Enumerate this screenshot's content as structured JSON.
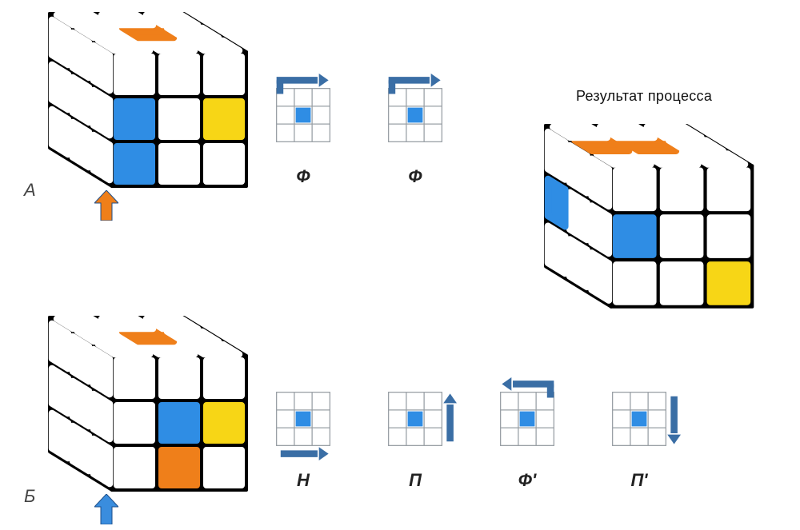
{
  "colors": {
    "orange": "#ef7f1a",
    "blue": "#2f8de4",
    "yellow": "#f7d616",
    "white": "#ffffff",
    "edge": "#000000",
    "grid": "#9aa0a6",
    "arrow": "#3a6ea5",
    "arrowBlue": "#3a8dde",
    "arrowOrange": "#ef7f1a"
  },
  "labels": {
    "rowA": "А",
    "rowB": "Б",
    "result": "Результат процесса"
  },
  "cubes": {
    "A": {
      "top": [
        "white",
        "white",
        "white",
        "white",
        "orange",
        "white",
        "white",
        "white",
        "white"
      ],
      "left": [
        "white",
        "white",
        "white",
        "white",
        "white",
        "white",
        "white",
        "white",
        "white"
      ],
      "front": [
        "white",
        "white",
        "white",
        "blue",
        "white",
        "yellow",
        "blue",
        "white",
        "white"
      ]
    },
    "B": {
      "top": [
        "white",
        "white",
        "white",
        "white",
        "orange",
        "white",
        "white",
        "white",
        "white"
      ],
      "left": [
        "white",
        "white",
        "white",
        "white",
        "white",
        "white",
        "white",
        "white",
        "white"
      ],
      "front": [
        "white",
        "white",
        "white",
        "white",
        "blue",
        "yellow",
        "white",
        "orange",
        "white"
      ]
    },
    "RESULT": {
      "top": [
        "white",
        "white",
        "white",
        "orange",
        "orange",
        "white",
        "white",
        "white",
        "white"
      ],
      "left": [
        "white",
        "white",
        "white",
        "blue",
        "white",
        "white",
        "white",
        "white",
        "white"
      ],
      "front": [
        "white",
        "white",
        "white",
        "blue",
        "white",
        "white",
        "white",
        "white",
        "yellow"
      ]
    }
  },
  "moves": {
    "A": [
      {
        "center": "blue",
        "arrow": "top-cw",
        "label": "Ф"
      },
      {
        "center": "blue",
        "arrow": "top-cw",
        "label": "Ф"
      }
    ],
    "B": [
      {
        "center": "blue",
        "arrow": "bottom-right",
        "label": "Н"
      },
      {
        "center": "blue",
        "arrow": "right-up",
        "label": "П"
      },
      {
        "center": "blue",
        "arrow": "top-ccw",
        "label": "Ф'"
      },
      {
        "center": "blue",
        "arrow": "right-down",
        "label": "П'"
      }
    ]
  },
  "indicators": {
    "A": "orange",
    "B": "blue"
  }
}
